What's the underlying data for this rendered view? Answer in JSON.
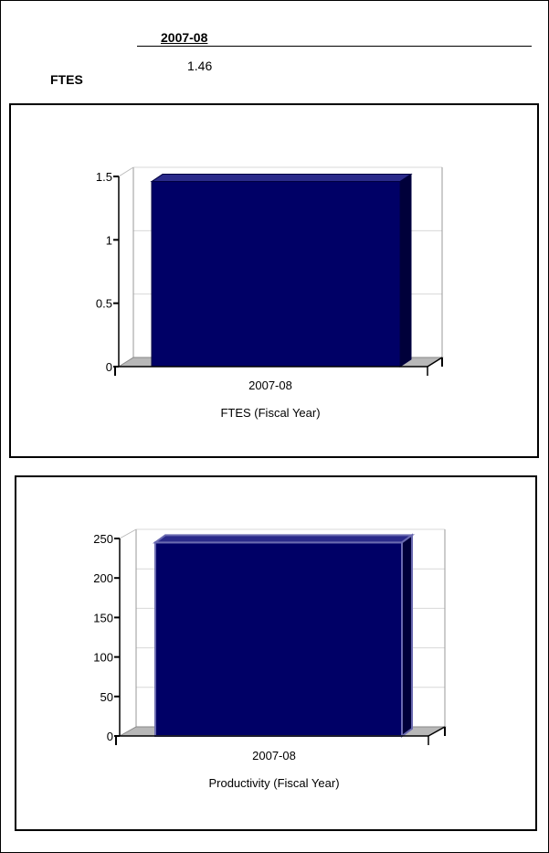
{
  "header": {
    "year": "2007-08",
    "metric_label": "FTES",
    "metric_value": "1.46"
  },
  "chart_data": [
    {
      "type": "bar",
      "categories": [
        "2007-08"
      ],
      "values": [
        1.46
      ],
      "xlabel": "FTES (Fiscal Year)",
      "ylabel": "",
      "ylim": [
        0,
        1.5
      ],
      "yticks": [
        "0",
        "0.5",
        "1",
        "1.5"
      ],
      "grid": true,
      "bar_color": "#000066"
    },
    {
      "type": "bar",
      "categories": [
        "2007-08"
      ],
      "values": [
        245
      ],
      "xlabel": "Productivity (Fiscal Year)",
      "ylabel": "",
      "ylim": [
        0,
        250
      ],
      "yticks": [
        "0",
        "50",
        "100",
        "150",
        "200",
        "250"
      ],
      "grid": true,
      "bar_color": "#000066"
    }
  ]
}
